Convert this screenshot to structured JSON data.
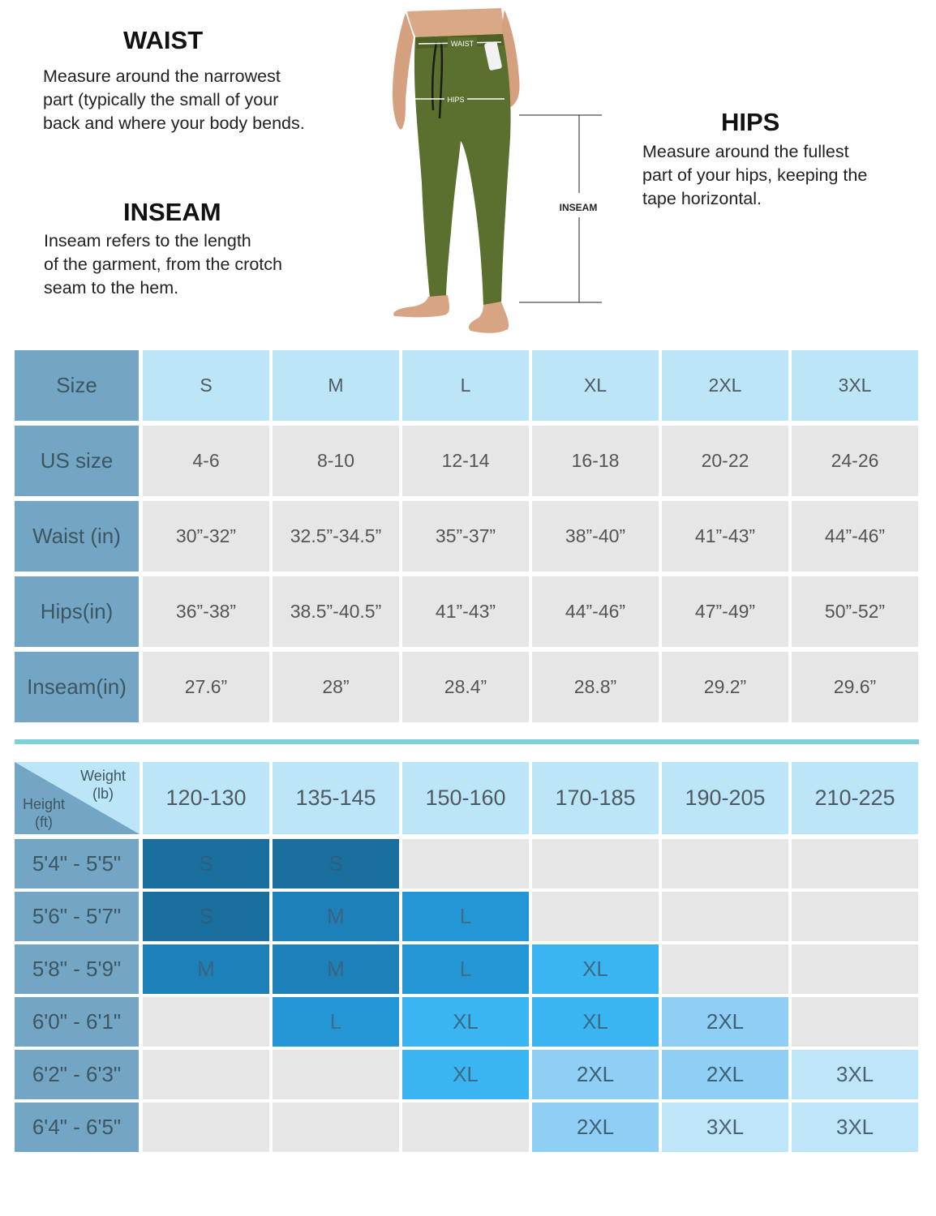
{
  "measure": {
    "waist": {
      "title": "WAIST",
      "lines": [
        "Measure around the narrowest",
        "part (typically the small of your",
        "back and where your body bends."
      ]
    },
    "inseam": {
      "title": "INSEAM",
      "lines": [
        "Inseam refers to the length",
        "of the garment, from the crotch",
        "seam to the hem."
      ]
    },
    "hips": {
      "title": "HIPS",
      "lines": [
        "Measure around the fullest",
        "part of your hips, keeping the",
        "tape horizontal."
      ]
    },
    "figure_labels": {
      "waist": "WAIST",
      "hips": "HIPS",
      "inseam": "INSEAM"
    }
  },
  "size_chart": {
    "corner_label": "Size",
    "sizes": [
      "S",
      "M",
      "L",
      "XL",
      "2XL",
      "3XL"
    ],
    "rows": [
      {
        "label": "US size",
        "values": [
          "4-6",
          "8-10",
          "12-14",
          "16-18",
          "20-22",
          "24-26"
        ]
      },
      {
        "label": "Waist (in)",
        "values": [
          "30”-32”",
          "32.5”-34.5”",
          "35”-37”",
          "38”-40”",
          "41”-43”",
          "44”-46”"
        ]
      },
      {
        "label": "Hips(in)",
        "values": [
          "36”-38”",
          "38.5”-40.5”",
          "41”-43”",
          "44”-46”",
          "47”-49”",
          "50”-52”"
        ]
      },
      {
        "label": "Inseam(in)",
        "values": [
          "27.6”",
          "28”",
          "28.4”",
          "28.8”",
          "29.2”",
          "29.6”"
        ]
      }
    ]
  },
  "fit_chart": {
    "corner": {
      "weight": "Weight",
      "weight_unit": "(lb)",
      "height": "Height",
      "height_unit": "(ft)"
    },
    "weights": [
      "120-130",
      "135-145",
      "150-160",
      "170-185",
      "190-205",
      "210-225"
    ],
    "rows": [
      {
        "height": "5'4\" - 5'5\"",
        "cells": [
          "S",
          "S",
          "",
          "",
          "",
          ""
        ]
      },
      {
        "height": "5'6\" - 5'7\"",
        "cells": [
          "S",
          "M",
          "L",
          "",
          "",
          ""
        ]
      },
      {
        "height": "5'8\" - 5'9\"",
        "cells": [
          "M",
          "M",
          "L",
          "XL",
          "",
          ""
        ]
      },
      {
        "height": "6'0\" - 6'1\"",
        "cells": [
          "",
          "L",
          "XL",
          "XL",
          "2XL",
          ""
        ]
      },
      {
        "height": "6'2\" - 6'3\"",
        "cells": [
          "",
          "",
          "XL",
          "2XL",
          "2XL",
          "3XL"
        ]
      },
      {
        "height": "6'4\" - 6'5\"",
        "cells": [
          "",
          "",
          "",
          "2XL",
          "3XL",
          "3XL"
        ]
      }
    ],
    "size_colors": {
      "S": {
        "bg": "#1b6f9e",
        "fg": "#2b5f80"
      },
      "M": {
        "bg": "#1d80b8",
        "fg": "#3a6484"
      },
      "L": {
        "bg": "#2396d6",
        "fg": "#3f6e8a"
      },
      "XL": {
        "bg": "#3ab5f2",
        "fg": "#3d6a84"
      },
      "2XL": {
        "bg": "#8fcff5",
        "fg": "#3f5f72"
      },
      "3XL": {
        "bg": "#bfe5f8",
        "fg": "#4a6272"
      },
      "": {
        "bg": "#e6e6e6",
        "fg": "#555555"
      }
    }
  }
}
